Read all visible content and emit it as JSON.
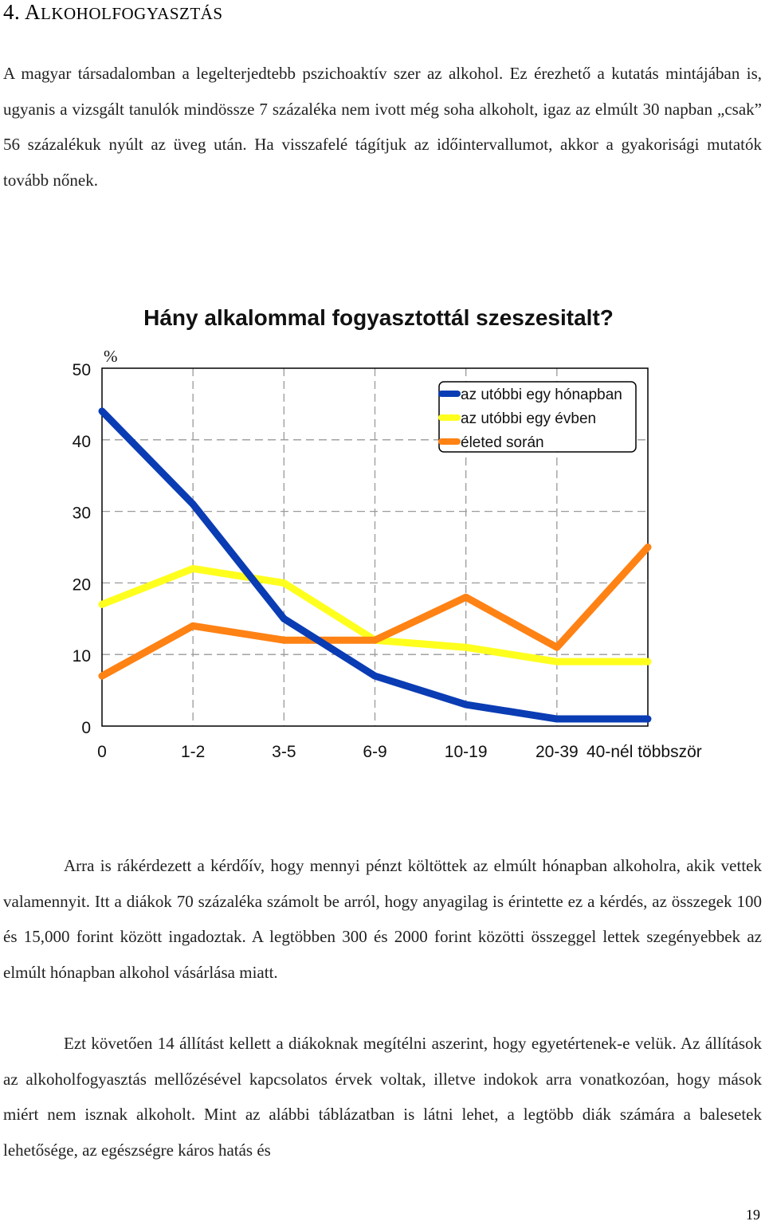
{
  "section": {
    "number": "4.",
    "title_first": "A",
    "title_rest": "LKOHOLFOGYASZTÁS"
  },
  "paragraphs": [
    "A magyar társadalomban a legelterjedtebb pszichoaktív szer az alkohol. Ez érezhető a kutatás mintájában is, ugyanis a vizsgált tanulók mindössze 7 százaléka nem ivott még soha alkoholt, igaz az elmúlt 30 napban „csak” 56 százalékuk nyúlt az üveg után. Ha visszafelé tágítjuk az időintervallumot, akkor a gyakorisági mutatók tovább nőnek.",
    "Arra is rákérdezett a kérdőív, hogy mennyi pénzt költöttek az elmúlt hónapban alkoholra, akik vettek valamennyit. Itt a diákok 70 százaléka számolt be arról, hogy anyagilag is érintette ez a kérdés, az összegek 100 és 15,000 forint között ingadoztak. A legtöbben 300 és 2000 forint közötti összeggel lettek szegényebbek az elmúlt hónapban alkohol vásárlása miatt.",
    "Ezt követően 14 állítást kellett a diákoknak megítélni aszerint, hogy egyetértenek-e velük. Az állítások az alkoholfogyasztás mellőzésével kapcsolatos érvek voltak, illetve indokok arra vonatkozóan, hogy mások miért nem isznak alkoholt. Mint az alábbi táblázatban is látni lehet, a legtöbb diák számára a balesetek lehetősége, az egészségre káros hatás és"
  ],
  "page_number": "19",
  "chart_data": {
    "type": "line",
    "title": "Hány alkalommal fogyasztottál szeszesitalt?",
    "ylabel": "%",
    "xlabel": "",
    "categories": [
      "0",
      "1-2",
      "3-5",
      "6-9",
      "10-19",
      "20-39",
      "40-nél többször"
    ],
    "y_ticks": [
      "0",
      "10",
      "20",
      "30",
      "40",
      "50"
    ],
    "ylim": [
      0,
      50
    ],
    "grid": true,
    "legend_position": "top-right",
    "series": [
      {
        "name": "az utóbbi egy hónapban",
        "color": "#0a3cb4",
        "values": [
          44,
          31,
          15,
          7,
          3,
          1,
          1
        ]
      },
      {
        "name": "az utóbbi egy évben",
        "color": "#ffff1e",
        "values": [
          17,
          22,
          20,
          12,
          11,
          9,
          9
        ]
      },
      {
        "name": "életed során",
        "color": "#ff8214",
        "values": [
          7,
          14,
          12,
          12,
          18,
          11,
          25
        ]
      }
    ]
  }
}
